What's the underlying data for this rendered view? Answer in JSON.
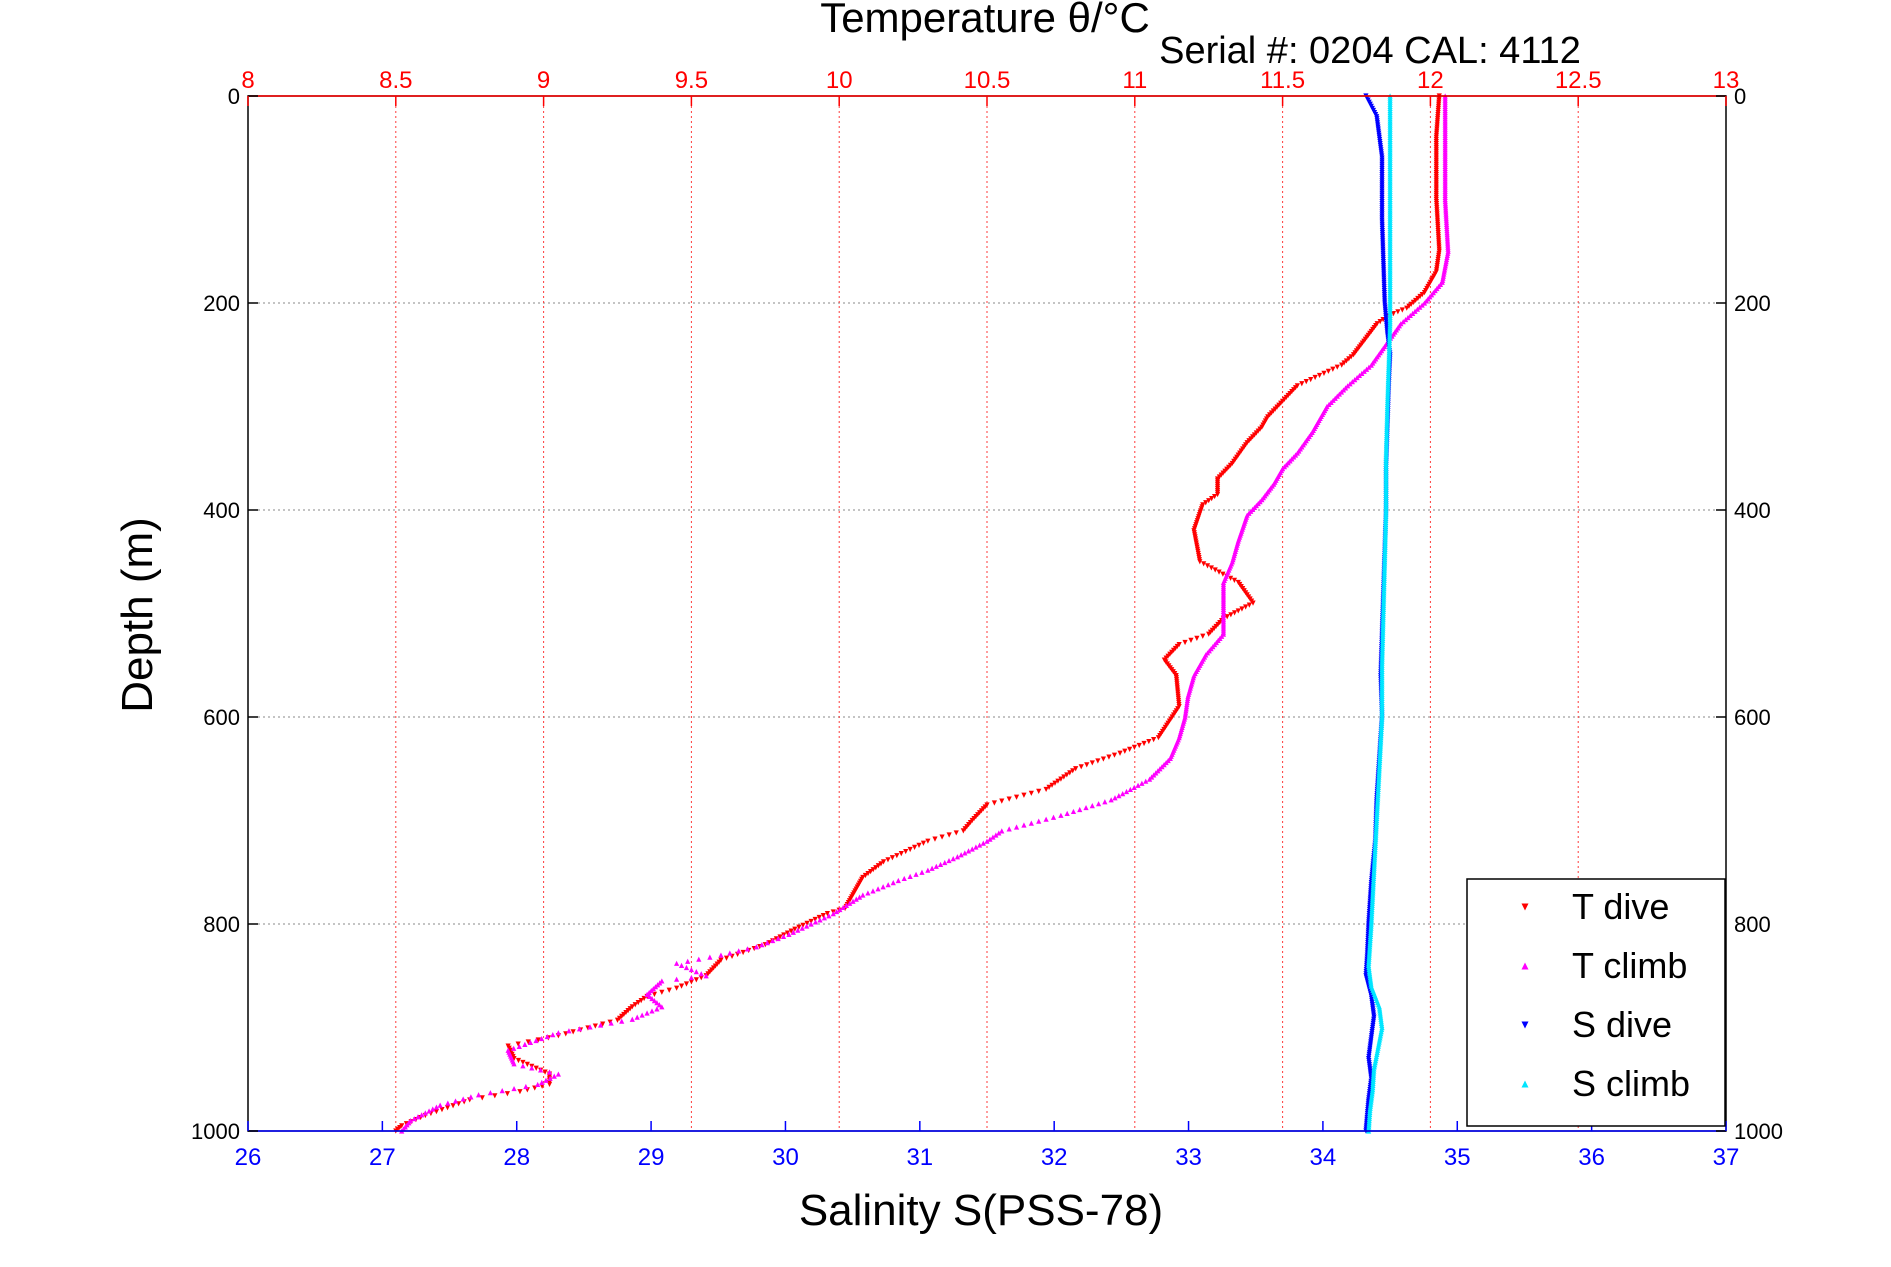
{
  "chart_data": {
    "type": "scatter",
    "title": "",
    "header_text": "Serial #: 0204  CAL: 4112",
    "axes": {
      "left": {
        "label": "Depth (m)",
        "ticks": [
          "0",
          "200",
          "400",
          "600",
          "800",
          "1000"
        ],
        "range": [
          0,
          1000
        ],
        "inverted": true,
        "color": "#000000"
      },
      "right": {
        "ticks": [
          "0",
          "200",
          "400",
          "600",
          "800",
          "1000"
        ],
        "range": [
          0,
          1000
        ],
        "inverted": true,
        "color": "#000000"
      },
      "top": {
        "label": "Temperature θ/°C",
        "ticks": [
          "8",
          "8.5",
          "9",
          "9.5",
          "10",
          "10.5",
          "11",
          "11.5",
          "12",
          "12.5",
          "13"
        ],
        "range": [
          8,
          13
        ],
        "color": "#ff0000",
        "grid_color": "#ff3b3b"
      },
      "bottom": {
        "label": "Salinity S(PSS-78)",
        "ticks": [
          "26",
          "27",
          "28",
          "29",
          "30",
          "31",
          "32",
          "33",
          "34",
          "35",
          "36",
          "37"
        ],
        "range": [
          26,
          37
        ],
        "color": "#0000ff"
      }
    },
    "grid": true,
    "legend": {
      "position": "bottom-right",
      "entries": [
        {
          "label": "T dive",
          "color": "#ff0000",
          "marker": "triangle-down"
        },
        {
          "label": "T climb",
          "color": "#ff00ff",
          "marker": "triangle-up"
        },
        {
          "label": "S dive",
          "color": "#0000ff",
          "marker": "triangle-down"
        },
        {
          "label": "S climb",
          "color": "#00e5ff",
          "marker": "triangle-up"
        }
      ]
    },
    "series": [
      {
        "name": "T dive",
        "axis": "top",
        "color": "#ff0000",
        "marker": "triangle-down",
        "points": [
          [
            12.03,
            0
          ],
          [
            12.02,
            40
          ],
          [
            12.02,
            100
          ],
          [
            12.03,
            150
          ],
          [
            12.02,
            170
          ],
          [
            11.98,
            190
          ],
          [
            11.92,
            205
          ],
          [
            11.86,
            212
          ],
          [
            11.82,
            220
          ],
          [
            11.78,
            235
          ],
          [
            11.74,
            250
          ],
          [
            11.7,
            260
          ],
          [
            11.55,
            280
          ],
          [
            11.5,
            295
          ],
          [
            11.45,
            310
          ],
          [
            11.43,
            320
          ],
          [
            11.38,
            335
          ],
          [
            11.33,
            355
          ],
          [
            11.28,
            370
          ],
          [
            11.28,
            385
          ],
          [
            11.23,
            395
          ],
          [
            11.2,
            420
          ],
          [
            11.22,
            450
          ],
          [
            11.35,
            470
          ],
          [
            11.4,
            490
          ],
          [
            11.3,
            505
          ],
          [
            11.25,
            520
          ],
          [
            11.15,
            530
          ],
          [
            11.1,
            545
          ],
          [
            11.14,
            560
          ],
          [
            11.15,
            590
          ],
          [
            11.08,
            620
          ],
          [
            10.95,
            635
          ],
          [
            10.8,
            650
          ],
          [
            10.7,
            670
          ],
          [
            10.5,
            685
          ],
          [
            10.45,
            700
          ],
          [
            10.42,
            710
          ],
          [
            10.3,
            720
          ],
          [
            10.15,
            740
          ],
          [
            10.08,
            755
          ],
          [
            10.05,
            770
          ],
          [
            10.02,
            785
          ],
          [
            9.96,
            790
          ],
          [
            9.85,
            805
          ],
          [
            9.75,
            820
          ],
          [
            9.6,
            835
          ],
          [
            9.55,
            850
          ],
          [
            9.45,
            862
          ],
          [
            9.35,
            870
          ],
          [
            9.3,
            880
          ],
          [
            9.25,
            893
          ],
          [
            9.05,
            908
          ],
          [
            8.88,
            918
          ],
          [
            8.9,
            930
          ],
          [
            9.02,
            945
          ],
          [
            9.02,
            955
          ],
          [
            8.92,
            962
          ],
          [
            8.75,
            970
          ],
          [
            8.6,
            985
          ],
          [
            8.52,
            995
          ],
          [
            8.5,
            1000
          ]
        ]
      },
      {
        "name": "T climb",
        "axis": "top",
        "color": "#ff00ff",
        "marker": "triangle-up",
        "points": [
          [
            12.05,
            0
          ],
          [
            12.05,
            40
          ],
          [
            12.05,
            100
          ],
          [
            12.06,
            150
          ],
          [
            12.04,
            180
          ],
          [
            11.98,
            200
          ],
          [
            11.9,
            220
          ],
          [
            11.85,
            240
          ],
          [
            11.8,
            260
          ],
          [
            11.72,
            280
          ],
          [
            11.65,
            300
          ],
          [
            11.6,
            325
          ],
          [
            11.55,
            345
          ],
          [
            11.5,
            360
          ],
          [
            11.47,
            375
          ],
          [
            11.43,
            390
          ],
          [
            11.38,
            405
          ],
          [
            11.35,
            430
          ],
          [
            11.33,
            450
          ],
          [
            11.3,
            470
          ],
          [
            11.3,
            490
          ],
          [
            11.3,
            520
          ],
          [
            11.24,
            540
          ],
          [
            11.2,
            560
          ],
          [
            11.18,
            580
          ],
          [
            11.17,
            600
          ],
          [
            11.15,
            620
          ],
          [
            11.12,
            640
          ],
          [
            11.05,
            660
          ],
          [
            10.92,
            680
          ],
          [
            10.75,
            695
          ],
          [
            10.55,
            710
          ],
          [
            10.5,
            720
          ],
          [
            10.4,
            735
          ],
          [
            10.3,
            748
          ],
          [
            10.2,
            758
          ],
          [
            10.08,
            772
          ],
          [
            9.98,
            790
          ],
          [
            9.83,
            810
          ],
          [
            9.72,
            822
          ],
          [
            9.6,
            830
          ],
          [
            9.45,
            838
          ],
          [
            9.55,
            850
          ],
          [
            9.4,
            855
          ],
          [
            9.35,
            868
          ],
          [
            9.4,
            880
          ],
          [
            9.3,
            892
          ],
          [
            9.05,
            905
          ],
          [
            8.88,
            922
          ],
          [
            8.9,
            935
          ],
          [
            9.05,
            945
          ],
          [
            8.98,
            955
          ],
          [
            8.78,
            965
          ],
          [
            8.65,
            975
          ],
          [
            8.55,
            990
          ],
          [
            8.52,
            1000
          ]
        ]
      },
      {
        "name": "S dive",
        "axis": "bottom",
        "color": "#0000ff",
        "marker": "triangle-down",
        "points": [
          [
            34.32,
            0
          ],
          [
            34.4,
            20
          ],
          [
            34.44,
            60
          ],
          [
            34.44,
            120
          ],
          [
            34.45,
            160
          ],
          [
            34.46,
            200
          ],
          [
            34.48,
            230
          ],
          [
            34.5,
            250
          ],
          [
            34.49,
            280
          ],
          [
            34.48,
            320
          ],
          [
            34.47,
            360
          ],
          [
            34.47,
            400
          ],
          [
            34.46,
            440
          ],
          [
            34.45,
            480
          ],
          [
            34.44,
            520
          ],
          [
            34.43,
            560
          ],
          [
            34.44,
            600
          ],
          [
            34.42,
            640
          ],
          [
            34.4,
            680
          ],
          [
            34.39,
            720
          ],
          [
            34.36,
            760
          ],
          [
            34.34,
            800
          ],
          [
            34.33,
            830
          ],
          [
            34.32,
            850
          ],
          [
            34.36,
            870
          ],
          [
            34.38,
            890
          ],
          [
            34.36,
            910
          ],
          [
            34.34,
            930
          ],
          [
            34.36,
            950
          ],
          [
            34.34,
            970
          ],
          [
            34.33,
            985
          ],
          [
            34.32,
            1000
          ]
        ]
      },
      {
        "name": "S climb",
        "axis": "bottom",
        "color": "#00e5ff",
        "marker": "triangle-up",
        "points": [
          [
            34.5,
            0
          ],
          [
            34.5,
            30
          ],
          [
            34.5,
            80
          ],
          [
            34.5,
            130
          ],
          [
            34.5,
            180
          ],
          [
            34.5,
            220
          ],
          [
            34.49,
            260
          ],
          [
            34.48,
            300
          ],
          [
            34.47,
            350
          ],
          [
            34.47,
            400
          ],
          [
            34.46,
            450
          ],
          [
            34.45,
            500
          ],
          [
            34.44,
            550
          ],
          [
            34.44,
            600
          ],
          [
            34.42,
            650
          ],
          [
            34.4,
            700
          ],
          [
            34.38,
            750
          ],
          [
            34.36,
            800
          ],
          [
            34.34,
            840
          ],
          [
            34.36,
            860
          ],
          [
            34.42,
            880
          ],
          [
            34.44,
            900
          ],
          [
            34.41,
            920
          ],
          [
            34.38,
            940
          ],
          [
            34.37,
            960
          ],
          [
            34.35,
            980
          ],
          [
            34.34,
            1000
          ]
        ]
      }
    ]
  }
}
